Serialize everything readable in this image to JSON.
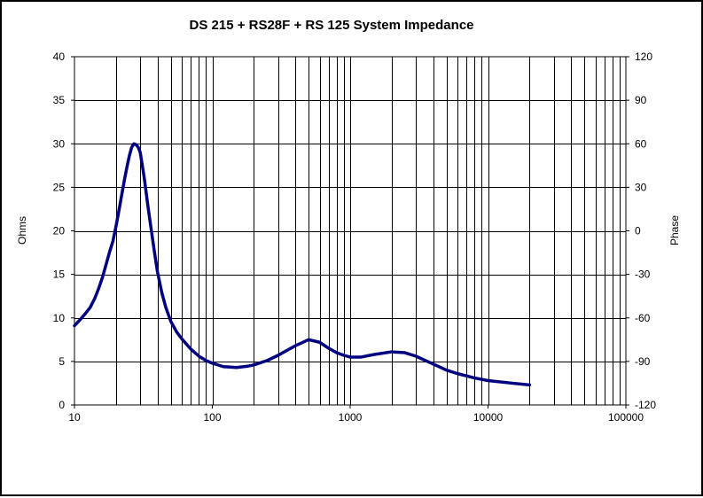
{
  "chart_data": {
    "type": "line",
    "title": "DS 215 + RS28F + RS 125  System Impedance",
    "xlabel": "",
    "ylabel": "Ohms",
    "y2label": "Phase",
    "xscale": "log",
    "xlim": [
      10,
      100000
    ],
    "ylim": [
      0,
      40
    ],
    "y2lim": [
      -120,
      120
    ],
    "grid": true,
    "legend": "none",
    "line_color": "#000080",
    "x_ticks": [
      "10",
      "100",
      "1000",
      "10000",
      "100000"
    ],
    "y_ticks": [
      "0",
      "5",
      "10",
      "15",
      "20",
      "25",
      "30",
      "35",
      "40"
    ],
    "y2_ticks": [
      "-120",
      "-90",
      "-60",
      "-30",
      "0",
      "30",
      "60",
      "90",
      "120"
    ],
    "series": [
      {
        "name": "",
        "x": [
          10,
          11,
          12,
          13,
          14,
          15,
          16,
          17,
          18,
          19,
          20,
          21,
          22,
          23,
          24,
          25,
          26,
          27,
          28,
          29,
          30,
          32,
          34,
          36,
          38,
          40,
          43,
          46,
          50,
          55,
          60,
          70,
          80,
          90,
          100,
          120,
          150,
          180,
          200,
          250,
          300,
          400,
          500,
          600,
          700,
          800,
          900,
          1000,
          1200,
          1500,
          2000,
          2500,
          3000,
          4000,
          5000,
          6000,
          8000,
          10000,
          15000,
          20000
        ],
        "y": [
          9.1,
          9.8,
          10.5,
          11.2,
          12.2,
          13.4,
          14.7,
          16.2,
          17.6,
          18.8,
          20.5,
          22.3,
          24.1,
          25.8,
          27.3,
          28.6,
          29.6,
          30.0,
          29.9,
          29.6,
          29.0,
          26.2,
          23.0,
          20.2,
          17.6,
          15.3,
          12.9,
          11.2,
          9.6,
          8.4,
          7.6,
          6.4,
          5.6,
          5.1,
          4.8,
          4.4,
          4.3,
          4.45,
          4.6,
          5.1,
          5.7,
          6.8,
          7.5,
          7.2,
          6.5,
          6.0,
          5.7,
          5.5,
          5.5,
          5.8,
          6.1,
          6.0,
          5.6,
          4.7,
          4.0,
          3.6,
          3.1,
          2.8,
          2.5,
          2.3
        ]
      }
    ]
  }
}
